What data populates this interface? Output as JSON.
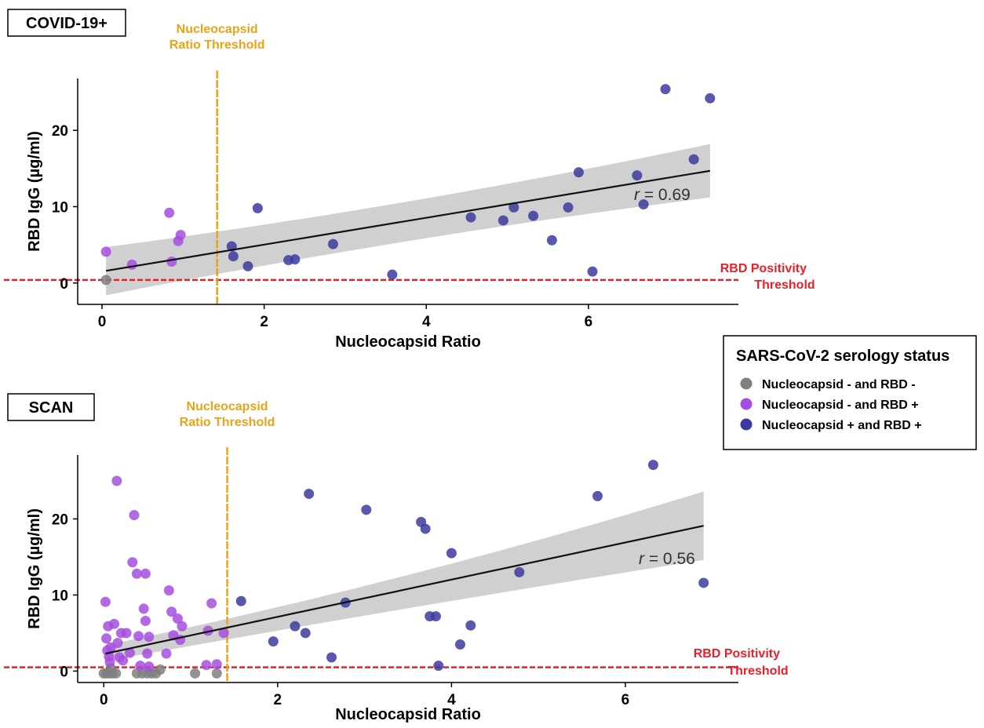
{
  "colors": {
    "neg_neg": "#7f7f7f",
    "neg_pos": "#a64ddf",
    "pos_pos": "#3b3b9e",
    "nucleocapsid_threshold": "#e8a317",
    "rbd_threshold": "#e8202a",
    "band": "#c8c8c8"
  },
  "legend": {
    "title": "SARS-CoV-2 serology status",
    "items": [
      {
        "label": "Nucleocapsid - and RBD -",
        "color": "#7f7f7f"
      },
      {
        "label": "Nucleocapsid - and RBD +",
        "color": "#a64ddf"
      },
      {
        "label": "Nucleocapsid + and RBD +",
        "color": "#3b3b9e"
      }
    ]
  },
  "chart_data": [
    {
      "type": "scatter",
      "title": "COVID-19+",
      "xlabel": "Nucleocapsid Ratio",
      "ylabel": "RBD IgG (µg/ml)",
      "xlim": [
        -0.3,
        7.85
      ],
      "ylim": [
        -2.8,
        26.8
      ],
      "xticks": [
        0,
        2,
        4,
        6
      ],
      "yticks": [
        0,
        10,
        20
      ],
      "nucleocapsid_threshold": {
        "x": 1.42,
        "label_line1": "Nucleocapsid",
        "label_line2": "Ratio Threshold"
      },
      "rbd_threshold": {
        "y": 0.4,
        "label_line1": "RBD Positivity",
        "label_line2": "Threshold"
      },
      "correlation": {
        "r_symbol": "r",
        "value": "= 0.69"
      },
      "fit": {
        "x": [
          0.05,
          7.5
        ],
        "y": [
          1.6,
          14.7
        ],
        "band_lower": [
          -1.6,
          11.2
        ],
        "band_upper": [
          4.7,
          18.2
        ]
      },
      "series": [
        {
          "status": "neg_neg",
          "points": [
            [
              0.05,
              0.4
            ]
          ]
        },
        {
          "status": "neg_pos",
          "points": [
            [
              0.05,
              4.1
            ],
            [
              0.37,
              2.4
            ],
            [
              0.83,
              9.2
            ],
            [
              0.86,
              2.8
            ],
            [
              0.94,
              5.5
            ],
            [
              0.97,
              6.3
            ]
          ]
        },
        {
          "status": "pos_pos",
          "points": [
            [
              1.6,
              4.8
            ],
            [
              1.62,
              3.5
            ],
            [
              1.8,
              2.2
            ],
            [
              1.92,
              9.8
            ],
            [
              2.3,
              3.0
            ],
            [
              2.38,
              3.1
            ],
            [
              2.85,
              5.1
            ],
            [
              3.58,
              1.1
            ],
            [
              4.55,
              8.6
            ],
            [
              4.95,
              8.2
            ],
            [
              5.08,
              9.9
            ],
            [
              5.32,
              8.8
            ],
            [
              5.55,
              5.6
            ],
            [
              5.75,
              9.9
            ],
            [
              5.88,
              14.5
            ],
            [
              6.05,
              1.5
            ],
            [
              6.6,
              14.1
            ],
            [
              6.68,
              10.3
            ],
            [
              6.95,
              25.4
            ],
            [
              7.3,
              16.2
            ],
            [
              7.5,
              24.2
            ]
          ]
        }
      ]
    },
    {
      "type": "scatter",
      "title": "SCAN",
      "xlabel": "Nucleocapsid Ratio",
      "ylabel": "RBD IgG (µg/ml)",
      "xlim": [
        -0.3,
        7.3
      ],
      "ylim": [
        -1.5,
        28.4
      ],
      "xticks": [
        0,
        2,
        4,
        6
      ],
      "yticks": [
        0,
        10,
        20
      ],
      "nucleocapsid_threshold": {
        "x": 1.42,
        "label_line1": "Nucleocapsid",
        "label_line2": "Ratio Threshold"
      },
      "rbd_threshold": {
        "y": 0.5,
        "label_line1": "RBD Positivity",
        "label_line2": "Threshold"
      },
      "correlation": {
        "r_symbol": "r",
        "value": "= 0.56"
      },
      "fit": {
        "x": [
          0.02,
          6.9
        ],
        "y": [
          2.3,
          19.1
        ],
        "band_lower": [
          1.3,
          14.6
        ],
        "band_upper": [
          3.4,
          23.6
        ]
      },
      "series": [
        {
          "status": "neg_neg",
          "points": [
            [
              0.0,
              -0.3
            ],
            [
              0.03,
              -0.3
            ],
            [
              0.06,
              -0.3
            ],
            [
              0.1,
              -0.3
            ],
            [
              0.14,
              -0.3
            ],
            [
              0.38,
              -0.3
            ],
            [
              0.44,
              -0.3
            ],
            [
              0.5,
              -0.3
            ],
            [
              0.55,
              -0.3
            ],
            [
              0.6,
              -0.3
            ],
            [
              0.65,
              0.2
            ],
            [
              1.05,
              -0.3
            ],
            [
              1.3,
              -0.3
            ],
            [
              0.08,
              0.4
            ]
          ]
        },
        {
          "status": "neg_pos",
          "points": [
            [
              0.02,
              9.1
            ],
            [
              0.03,
              4.3
            ],
            [
              0.04,
              2.7
            ],
            [
              0.05,
              5.9
            ],
            [
              0.06,
              1.9
            ],
            [
              0.07,
              1.2
            ],
            [
              0.08,
              3.1
            ],
            [
              0.12,
              6.2
            ],
            [
              0.15,
              25.0
            ],
            [
              0.16,
              3.7
            ],
            [
              0.18,
              1.8
            ],
            [
              0.2,
              5.0
            ],
            [
              0.22,
              1.4
            ],
            [
              0.26,
              5.0
            ],
            [
              0.3,
              2.4
            ],
            [
              0.33,
              14.3
            ],
            [
              0.35,
              20.5
            ],
            [
              0.38,
              12.8
            ],
            [
              0.4,
              4.6
            ],
            [
              0.42,
              0.7
            ],
            [
              0.46,
              8.2
            ],
            [
              0.48,
              12.8
            ],
            [
              0.48,
              6.6
            ],
            [
              0.5,
              2.3
            ],
            [
              0.52,
              4.5
            ],
            [
              0.52,
              0.6
            ],
            [
              0.72,
              2.3
            ],
            [
              0.75,
              10.6
            ],
            [
              0.78,
              7.8
            ],
            [
              0.8,
              4.7
            ],
            [
              0.85,
              6.9
            ],
            [
              0.88,
              4.1
            ],
            [
              0.9,
              5.9
            ],
            [
              1.18,
              0.8
            ],
            [
              1.2,
              5.3
            ],
            [
              1.24,
              8.9
            ],
            [
              1.3,
              0.9
            ],
            [
              1.38,
              5.0
            ]
          ]
        },
        {
          "status": "pos_pos",
          "points": [
            [
              1.58,
              9.2
            ],
            [
              1.95,
              3.9
            ],
            [
              2.2,
              5.9
            ],
            [
              2.32,
              5.0
            ],
            [
              2.36,
              23.3
            ],
            [
              2.62,
              1.8
            ],
            [
              2.78,
              9.0
            ],
            [
              3.02,
              21.2
            ],
            [
              3.65,
              19.6
            ],
            [
              3.7,
              18.7
            ],
            [
              3.75,
              7.2
            ],
            [
              3.82,
              7.2
            ],
            [
              3.85,
              0.7
            ],
            [
              4.0,
              15.5
            ],
            [
              4.1,
              3.5
            ],
            [
              4.22,
              6.0
            ],
            [
              4.78,
              13.0
            ],
            [
              5.68,
              23.0
            ],
            [
              6.32,
              27.1
            ],
            [
              6.9,
              11.6
            ]
          ]
        }
      ]
    }
  ]
}
